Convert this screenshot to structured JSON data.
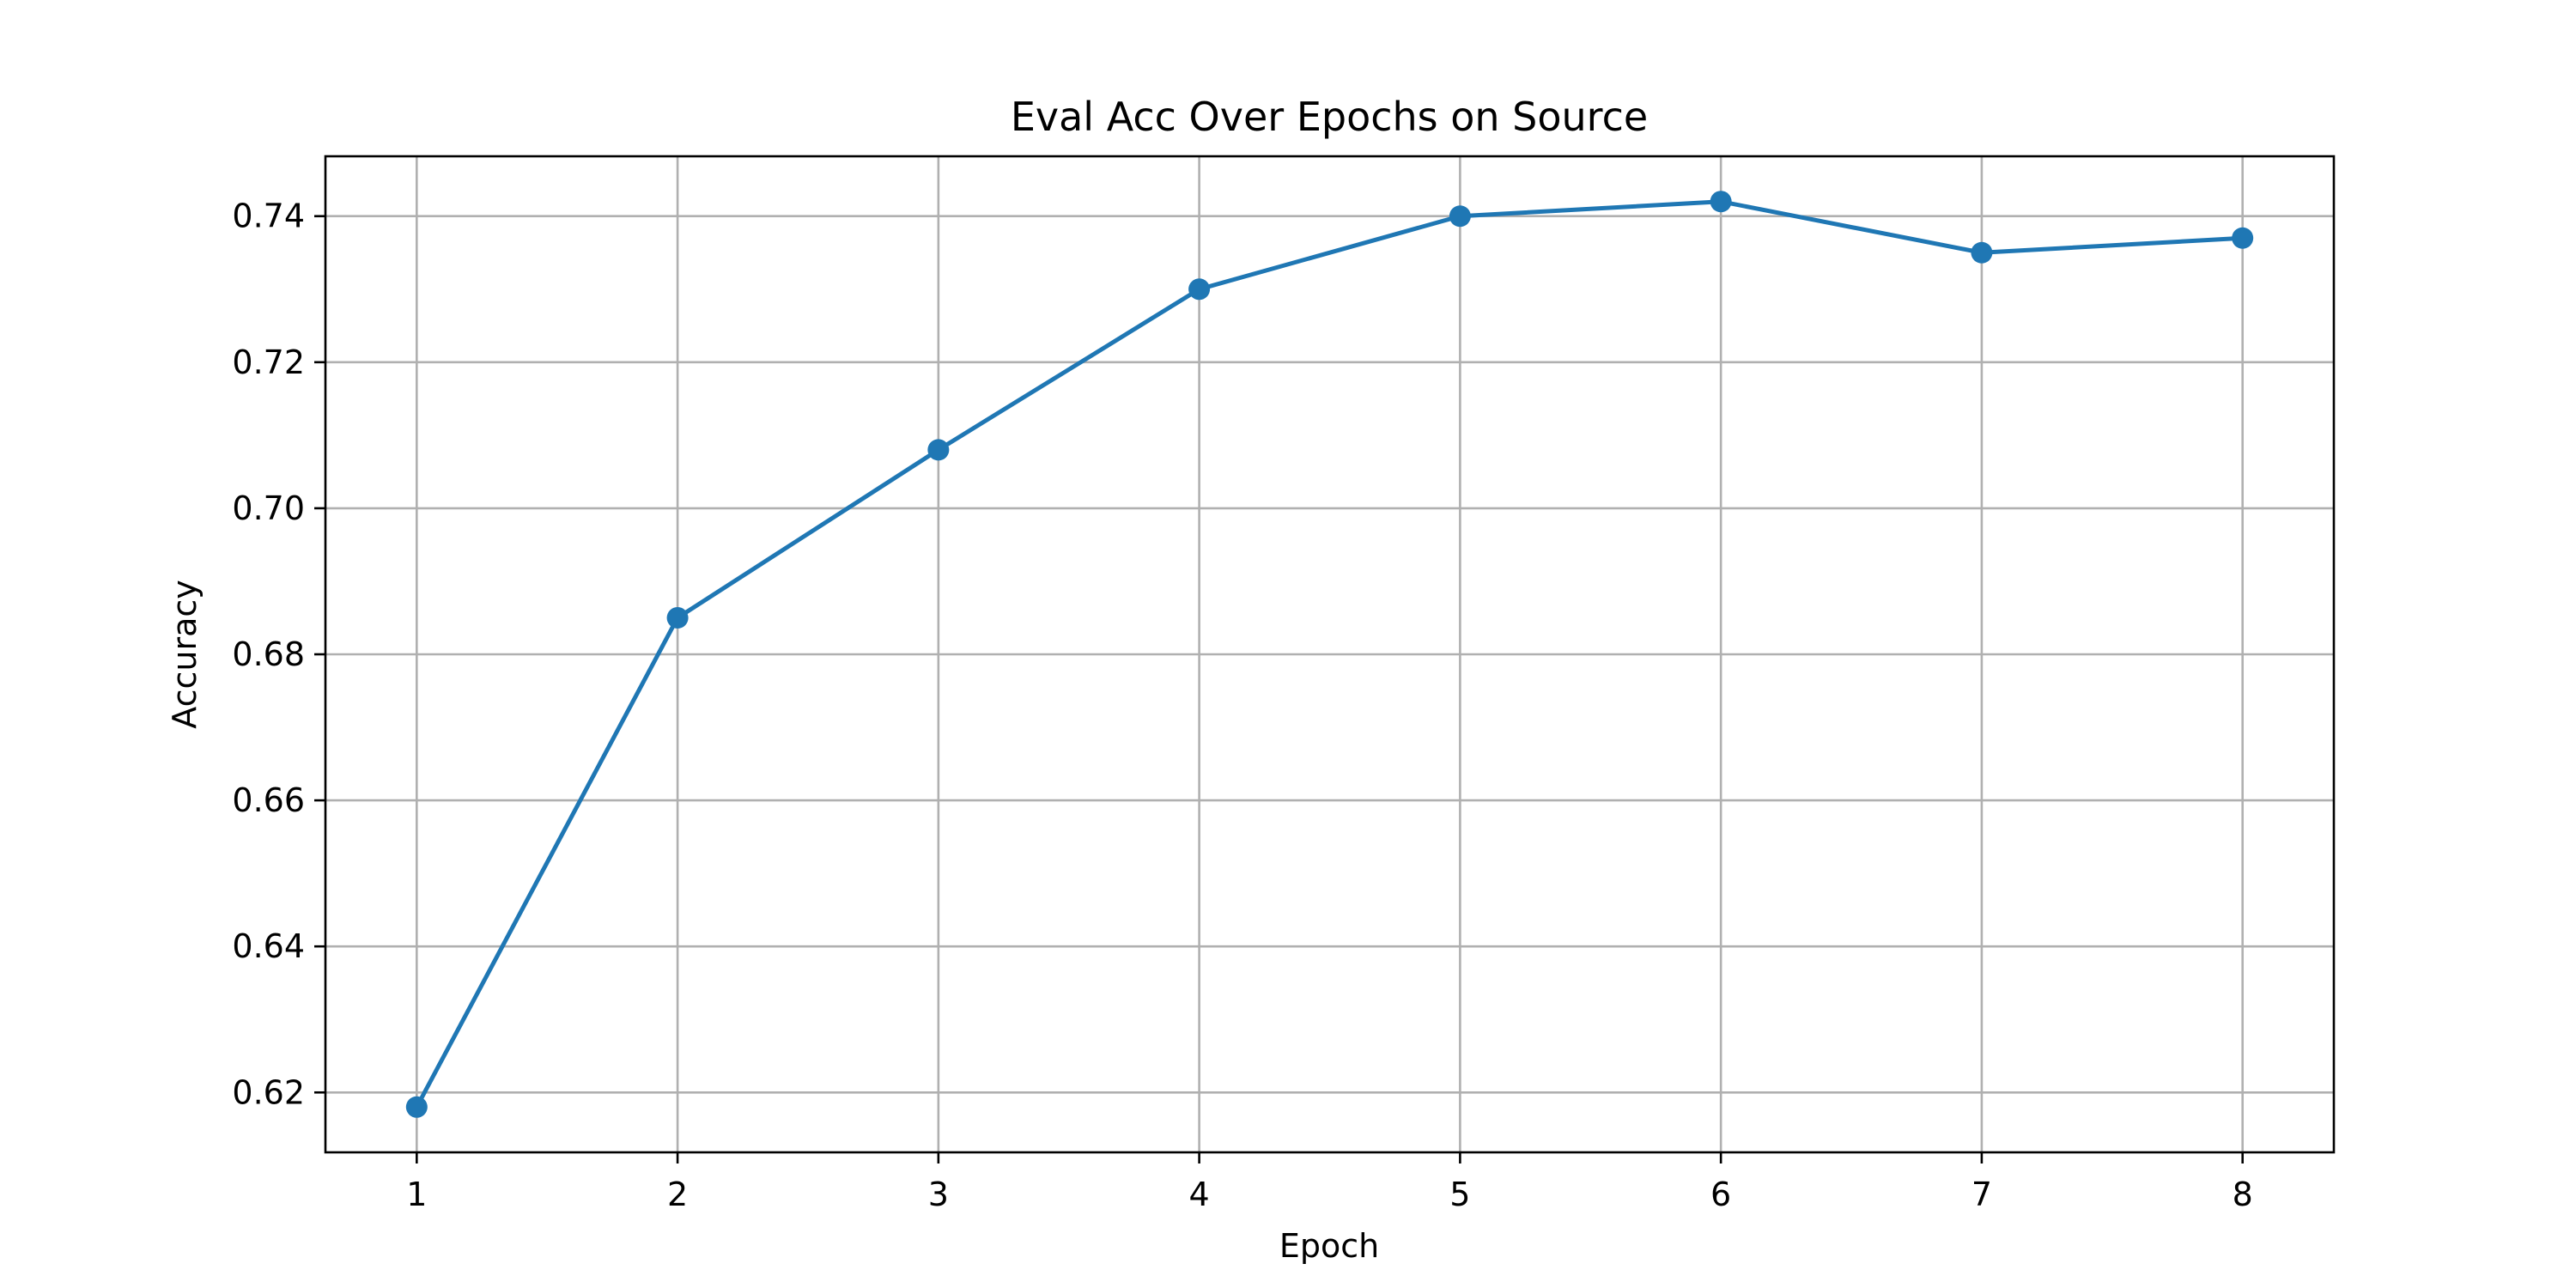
{
  "chart_data": {
    "type": "line",
    "title": "Eval Acc Over Epochs on Source",
    "xlabel": "Epoch",
    "ylabel": "Accuracy",
    "x": [
      1,
      2,
      3,
      4,
      5,
      6,
      7,
      8
    ],
    "series": [
      {
        "values": [
          0.618,
          0.685,
          0.708,
          0.73,
          0.74,
          0.742,
          0.735,
          0.737
        ],
        "color": "#1f77b4",
        "marker": "circle"
      }
    ],
    "xticks": [
      "1",
      "2",
      "3",
      "4",
      "5",
      "6",
      "7",
      "8"
    ],
    "yticks": [
      "0.62",
      "0.64",
      "0.66",
      "0.68",
      "0.70",
      "0.72",
      "0.74"
    ],
    "ytick_values": [
      0.62,
      0.64,
      0.66,
      0.68,
      0.7,
      0.72,
      0.74
    ],
    "xlim": [
      0.65,
      8.35
    ],
    "ylim": [
      0.6118,
      0.7482
    ],
    "grid": true,
    "legend": "none"
  }
}
